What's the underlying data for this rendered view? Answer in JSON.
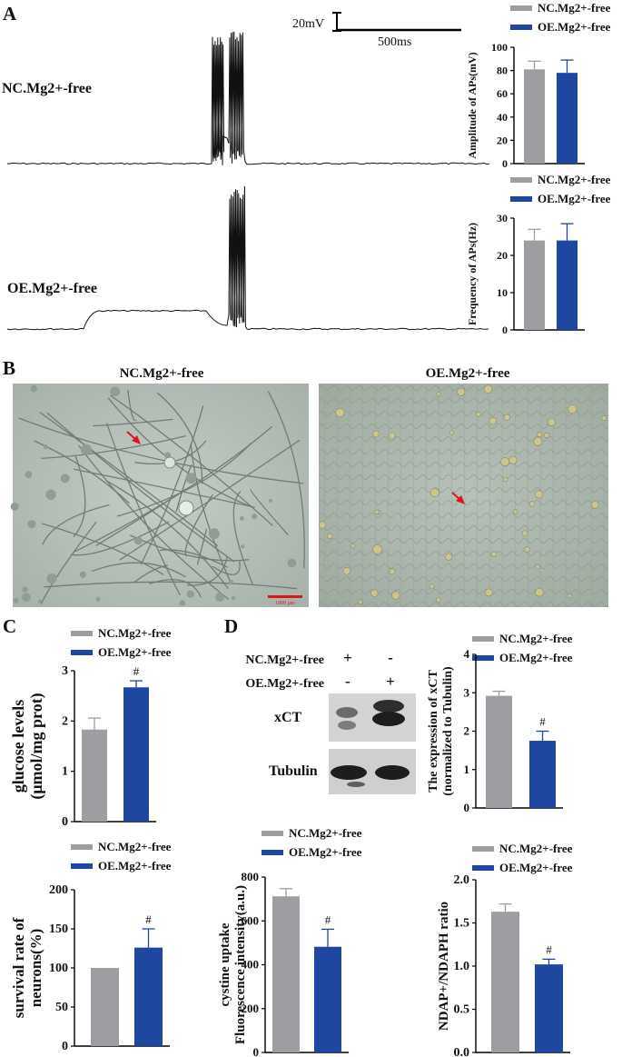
{
  "colors": {
    "nc": "#9d9ea2",
    "oe": "#1f46a0",
    "axis": "#000000",
    "trace": "#111111",
    "scale_bar_red": "#d8161b"
  },
  "legend": {
    "nc": "NC.Mg2+-free",
    "oe": "OE.Mg2+-free"
  },
  "panel_a": {
    "letter": "A",
    "trace_nc_label": "NC.Mg2+-free",
    "trace_oe_label": "OE.Mg2+-free",
    "scale_voltage": "20mV",
    "scale_time": "500ms"
  },
  "panel_b": {
    "letter": "B",
    "left_title": "NC.Mg2+-free",
    "right_title": "OE.Mg2+-free",
    "scale_label": "1000 μm"
  },
  "panel_c": {
    "letter": "C"
  },
  "panel_d": {
    "letter": "D",
    "western_blot": {
      "row_labels": [
        "NC.Mg2+-free",
        "OE.Mg2+-free"
      ],
      "lane1": [
        "+",
        "-"
      ],
      "lane2": [
        "-",
        "+"
      ],
      "bands": [
        "xCT",
        "Tubulin"
      ]
    }
  },
  "chart_data": [
    {
      "id": "amplitude",
      "type": "bar",
      "categories": [
        "NC.Mg2+-free",
        "OE.Mg2+-free"
      ],
      "values": [
        81,
        78
      ],
      "errors": [
        7,
        11
      ],
      "ylabel": "Amplitude of APs(mV)",
      "ylim": [
        0,
        100
      ],
      "ticks": [
        0,
        20,
        40,
        60,
        80,
        100
      ],
      "annotations": [
        "",
        ""
      ],
      "legend": [
        "NC.Mg2+-free",
        "OE.Mg2+-free"
      ]
    },
    {
      "id": "frequency",
      "type": "bar",
      "categories": [
        "NC.Mg2+-free",
        "OE.Mg2+-free"
      ],
      "values": [
        24,
        24
      ],
      "errors": [
        3,
        4.5
      ],
      "ylabel": "Frequency of APs(Hz)",
      "ylim": [
        0,
        30
      ],
      "ticks": [
        0,
        10,
        20,
        30
      ],
      "annotations": [
        "",
        ""
      ],
      "legend": [
        "NC.Mg2+-free",
        "OE.Mg2+-free"
      ]
    },
    {
      "id": "glucose",
      "type": "bar",
      "categories": [
        "NC.Mg2+-free",
        "OE.Mg2+-free"
      ],
      "values": [
        1.83,
        2.67
      ],
      "errors": [
        0.23,
        0.13
      ],
      "ylabel_lines": [
        "glucose levels",
        "(μmol/mg prot)"
      ],
      "ylim": [
        0,
        3
      ],
      "ticks": [
        0,
        1,
        2,
        3
      ],
      "annotations": [
        "",
        "#"
      ],
      "legend": [
        "NC.Mg2+-free",
        "OE.Mg2+-free"
      ]
    },
    {
      "id": "survival",
      "type": "bar",
      "categories": [
        "NC.Mg2+-free",
        "OE.Mg2+-free"
      ],
      "values": [
        100,
        126
      ],
      "errors": [
        0,
        24
      ],
      "ylabel_lines": [
        "survival rate of",
        "neurons(%)"
      ],
      "ylim": [
        0,
        200
      ],
      "ticks": [
        0,
        50,
        100,
        150,
        200
      ],
      "annotations": [
        "",
        "#"
      ],
      "legend": [
        "NC.Mg2+-free",
        "OE.Mg2+-free"
      ]
    },
    {
      "id": "xct",
      "type": "bar",
      "categories": [
        "NC.Mg2+-free",
        "OE.Mg2+-free"
      ],
      "values": [
        2.92,
        1.75
      ],
      "errors": [
        0.12,
        0.25
      ],
      "ylabel_lines": [
        "The expression of xCT",
        "(normalized to  Tubulin)"
      ],
      "ylim": [
        0,
        4
      ],
      "ticks": [
        0,
        1,
        2,
        3,
        4
      ],
      "annotations": [
        "",
        "#"
      ],
      "legend": [
        "NC.Mg2+-free",
        "OE.Mg2+-free"
      ]
    },
    {
      "id": "cystine",
      "type": "bar",
      "categories": [
        "NC.Mg2+-free",
        "OE.Mg2+-free"
      ],
      "values": [
        712,
        482
      ],
      "errors": [
        35,
        80
      ],
      "ylabel_lines": [
        "cystine uptake",
        "Fluorescence intensity(a.u.)"
      ],
      "ylim": [
        0,
        800
      ],
      "ticks": [
        0,
        200,
        400,
        600,
        800
      ],
      "annotations": [
        "",
        "#"
      ],
      "legend": [
        "NC.Mg2+-free",
        "OE.Mg2+-free"
      ]
    },
    {
      "id": "ndap",
      "type": "bar",
      "categories": [
        "NC.Mg2+-free",
        "OE.Mg2+-free"
      ],
      "values": [
        1.63,
        1.02
      ],
      "errors": [
        0.09,
        0.06
      ],
      "ylabel": "NDAP+/NDAPH ratio",
      "ylim": [
        0,
        2
      ],
      "ticks": [
        0,
        0.5,
        1,
        1.5,
        2
      ],
      "tick_labels": [
        "0.0",
        "0.5",
        "1.0",
        "1.5",
        "2.0"
      ],
      "annotations": [
        "",
        "#"
      ],
      "legend": [
        "NC.Mg2+-free",
        "OE.Mg2+-free"
      ]
    }
  ]
}
